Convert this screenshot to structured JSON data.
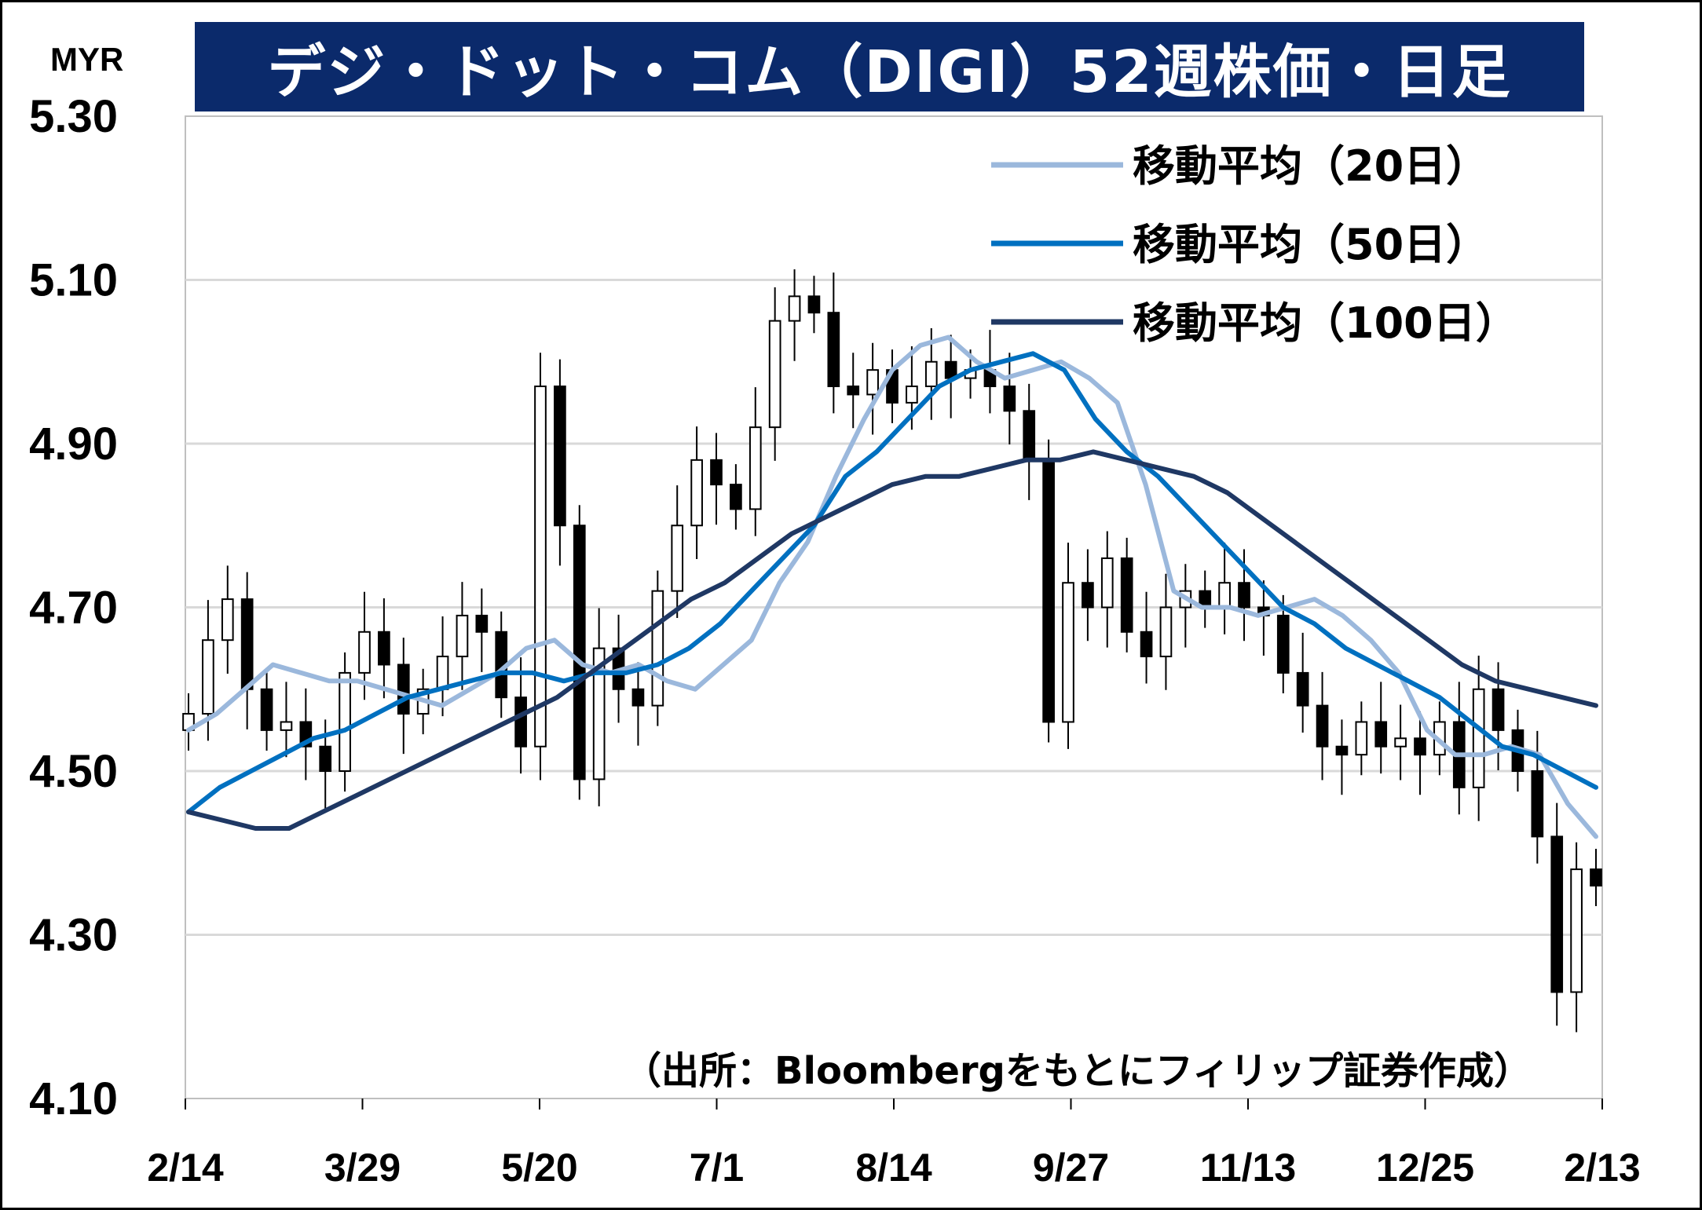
{
  "title": "デジ・ドット・コム（DIGI）52週株価・日足",
  "unit": "MYR",
  "source": "（出所：Bloombergをもとにフィリップ証券作成）",
  "colors": {
    "title_bg": "#0b2a6b",
    "ma20": "#9bb8dc",
    "ma50": "#0070c0",
    "ma100": "#1f3864",
    "candle": "#000000",
    "grid": "#d9d9d9"
  },
  "chart_data": {
    "type": "candlestick",
    "y_ticks": [
      "4.10",
      "4.30",
      "4.50",
      "4.70",
      "4.90",
      "5.10",
      "5.30"
    ],
    "ylim": [
      4.1,
      5.3
    ],
    "x_ticks": [
      "2/14",
      "3/29",
      "5/20",
      "7/1",
      "8/14",
      "9/27",
      "11/13",
      "12/25",
      "2/13"
    ],
    "grid": true,
    "legend_position": "top-right",
    "series": [
      {
        "name": "移動平均（20日）",
        "color": "#9bb8dc",
        "values": [
          4.55,
          4.57,
          4.6,
          4.63,
          4.62,
          4.61,
          4.61,
          4.6,
          4.59,
          4.58,
          4.6,
          4.62,
          4.65,
          4.66,
          4.63,
          4.62,
          4.63,
          4.61,
          4.6,
          4.63,
          4.66,
          4.73,
          4.78,
          4.86,
          4.93,
          4.99,
          5.02,
          5.03,
          5.0,
          4.98,
          4.99,
          5.0,
          4.98,
          4.95,
          4.85,
          4.72,
          4.7,
          4.7,
          4.69,
          4.7,
          4.71,
          4.69,
          4.66,
          4.62,
          4.55,
          4.52,
          4.52,
          4.53,
          4.52,
          4.46,
          4.42
        ]
      },
      {
        "name": "移動平均（50日）",
        "color": "#0070c0",
        "values": [
          4.45,
          4.48,
          4.5,
          4.52,
          4.54,
          4.55,
          4.57,
          4.59,
          4.6,
          4.61,
          4.62,
          4.62,
          4.61,
          4.62,
          4.62,
          4.63,
          4.65,
          4.68,
          4.72,
          4.76,
          4.8,
          4.86,
          4.89,
          4.93,
          4.97,
          4.99,
          5.0,
          5.01,
          4.99,
          4.93,
          4.89,
          4.86,
          4.82,
          4.78,
          4.74,
          4.7,
          4.68,
          4.65,
          4.63,
          4.61,
          4.59,
          4.56,
          4.53,
          4.52,
          4.5,
          4.48
        ]
      },
      {
        "name": "移動平均（100日）",
        "color": "#1f3864",
        "values": [
          4.45,
          4.44,
          4.43,
          4.43,
          4.45,
          4.47,
          4.49,
          4.51,
          4.53,
          4.55,
          4.57,
          4.59,
          4.62,
          4.65,
          4.68,
          4.71,
          4.73,
          4.76,
          4.79,
          4.81,
          4.83,
          4.85,
          4.86,
          4.86,
          4.87,
          4.88,
          4.88,
          4.89,
          4.88,
          4.87,
          4.86,
          4.84,
          4.81,
          4.78,
          4.75,
          4.72,
          4.69,
          4.66,
          4.63,
          4.61,
          4.6,
          4.59,
          4.58
        ]
      },
      {
        "name": "price",
        "values": [
          4.57,
          4.66,
          4.71,
          4.6,
          4.55,
          4.56,
          4.53,
          4.5,
          4.62,
          4.67,
          4.63,
          4.57,
          4.6,
          4.64,
          4.69,
          4.67,
          4.59,
          4.53,
          4.97,
          4.8,
          4.49,
          4.65,
          4.6,
          4.58,
          4.72,
          4.8,
          4.88,
          4.85,
          4.82,
          4.92,
          5.05,
          5.08,
          5.06,
          4.97,
          4.96,
          4.99,
          4.95,
          4.97,
          5.0,
          4.98,
          4.99,
          4.97,
          4.94,
          4.88,
          4.56,
          4.73,
          4.7,
          4.76,
          4.67,
          4.64,
          4.7,
          4.72,
          4.7,
          4.73,
          4.7,
          4.69,
          4.62,
          4.58,
          4.53,
          4.52,
          4.56,
          4.53,
          4.54,
          4.52,
          4.56,
          4.48,
          4.6,
          4.55,
          4.5,
          4.42,
          4.23,
          4.38,
          4.36
        ]
      }
    ]
  }
}
